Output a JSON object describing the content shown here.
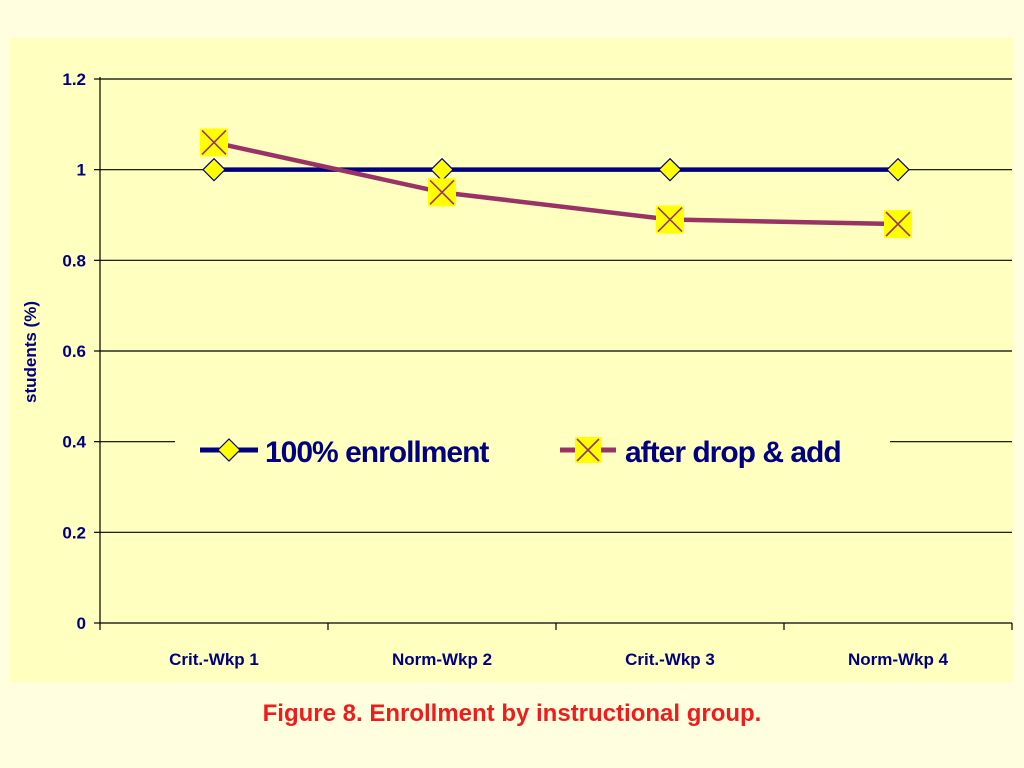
{
  "caption": "Figure 8. Enrollment by instructional group.",
  "chart_data": {
    "type": "line",
    "categories": [
      "Crit.-Wkp 1",
      "Norm-Wkp 2",
      "Crit.-Wkp 3",
      "Norm-Wkp 4"
    ],
    "series": [
      {
        "name": "100% enrollment",
        "values": [
          1,
          1,
          1,
          1
        ],
        "color": "#000080",
        "marker": "diamond"
      },
      {
        "name": "after drop & add",
        "values": [
          1.06,
          0.95,
          0.89,
          0.88
        ],
        "color": "#993366",
        "marker": "x"
      }
    ],
    "ylabel": "students (%)",
    "ylim": [
      0,
      1.2
    ],
    "yticks": [
      "0",
      "0.2",
      "0.4",
      "0.6",
      "0.8",
      "1",
      "1.2"
    ],
    "grid": true,
    "legend": "center",
    "colors": {
      "plot_bg": "#ffffc0",
      "page_bg": "#ffffe0",
      "axis_text": "#000080",
      "caption": "#ee1c1c",
      "marker_fill": "#ffff00"
    }
  }
}
